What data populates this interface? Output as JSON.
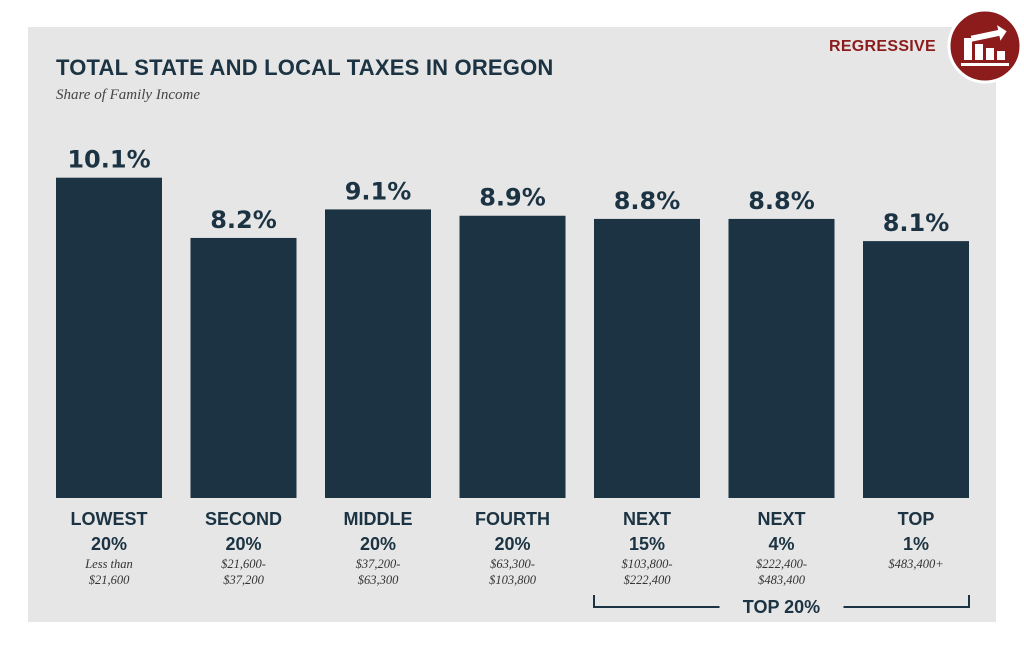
{
  "header": {
    "title": "TOTAL STATE AND LOCAL TAXES IN OREGON",
    "subtitle": "Share of Family Income"
  },
  "badge": {
    "label": "REGRESSIVE",
    "icon": "regressive-chart-icon",
    "color": "#8c1c1c"
  },
  "colors": {
    "bar": "#1b3342",
    "panel": "#e6e6e6",
    "text": "#1b3342"
  },
  "chart_data": {
    "type": "bar",
    "title": "TOTAL STATE AND LOCAL TAXES IN OREGON",
    "subtitle": "Share of Family Income",
    "ylabel": "Share of Family Income",
    "ylim": [
      0,
      10.5
    ],
    "categories": [
      {
        "name": [
          "LOWEST",
          "20%"
        ],
        "range": [
          "Less than",
          "$21,600"
        ]
      },
      {
        "name": [
          "SECOND",
          "20%"
        ],
        "range": [
          "$21,600-",
          "$37,200"
        ]
      },
      {
        "name": [
          "MIDDLE",
          "20%"
        ],
        "range": [
          "$37,200-",
          "$63,300"
        ]
      },
      {
        "name": [
          "FOURTH",
          "20%"
        ],
        "range": [
          "$63,300-",
          "$103,800"
        ]
      },
      {
        "name": [
          "NEXT",
          "15%"
        ],
        "range": [
          "$103,800-",
          "$222,400"
        ]
      },
      {
        "name": [
          "NEXT",
          "4%"
        ],
        "range": [
          "$222,400-",
          "$483,400"
        ]
      },
      {
        "name": [
          "TOP",
          "1%"
        ],
        "range": [
          "$483,400+"
        ]
      }
    ],
    "values": [
      10.1,
      8.2,
      9.1,
      8.9,
      8.8,
      8.8,
      8.1
    ],
    "value_labels": [
      "10.1%",
      "8.2%",
      "9.1%",
      "8.9%",
      "8.8%",
      "8.8%",
      "8.1%"
    ],
    "bracket": {
      "label": "TOP 20%",
      "from_index": 4,
      "to_index": 6
    }
  }
}
